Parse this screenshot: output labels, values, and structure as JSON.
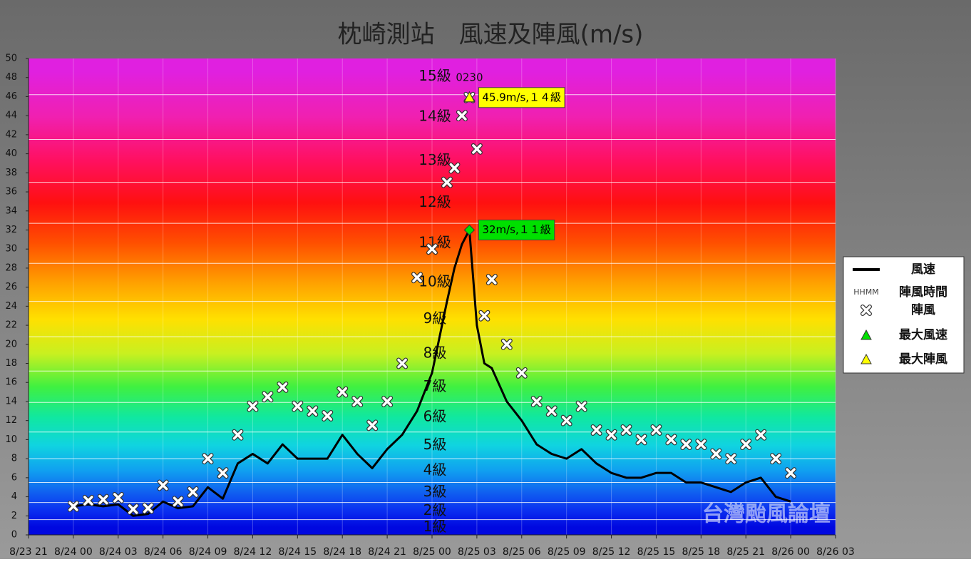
{
  "chart_data": {
    "type": "line",
    "title": "枕崎測站　風速及陣風(m/s)",
    "watermark": "台灣颱風論壇",
    "xlim": [
      "8/23 21",
      "8/26 03"
    ],
    "xticks": [
      "8/23 21",
      "8/24 00",
      "8/24 03",
      "8/24 06",
      "8/24 09",
      "8/24 12",
      "8/24 15",
      "8/24 18",
      "8/24 21",
      "8/25 00",
      "8/25 03",
      "8/25 06",
      "8/25 09",
      "8/25 12",
      "8/25 15",
      "8/25 18",
      "8/25 21",
      "8/26 00",
      "8/26 03"
    ],
    "ylim": [
      0,
      50
    ],
    "yticks": [
      0,
      2,
      4,
      6,
      8,
      10,
      12,
      14,
      16,
      18,
      20,
      22,
      24,
      26,
      28,
      30,
      32,
      34,
      36,
      38,
      40,
      42,
      44,
      46,
      48,
      50
    ],
    "grid": true,
    "x": [
      "8/24 00:00",
      "8/24 01:00",
      "8/24 02:00",
      "8/24 03:00",
      "8/24 04:00",
      "8/24 05:00",
      "8/24 06:00",
      "8/24 07:00",
      "8/24 08:00",
      "8/24 09:00",
      "8/24 10:00",
      "8/24 11:00",
      "8/24 12:00",
      "8/24 13:00",
      "8/24 14:00",
      "8/24 15:00",
      "8/24 16:00",
      "8/24 17:00",
      "8/24 18:00",
      "8/24 19:00",
      "8/24 20:00",
      "8/24 21:00",
      "8/24 22:00",
      "8/24 23:00",
      "8/25 00:00",
      "8/25 01:00",
      "8/25 01:30",
      "8/25 02:00",
      "8/25 02:30",
      "8/25 03:00",
      "8/25 03:30",
      "8/25 04:00",
      "8/25 05:00",
      "8/25 06:00",
      "8/25 07:00",
      "8/25 08:00",
      "8/25 09:00",
      "8/25 10:00",
      "8/25 11:00",
      "8/25 12:00",
      "8/25 13:00",
      "8/25 14:00",
      "8/25 15:00",
      "8/25 16:00",
      "8/25 17:00",
      "8/25 18:00",
      "8/25 19:00",
      "8/25 20:00",
      "8/25 21:00",
      "8/25 22:00",
      "8/25 23:00",
      "8/26 00:00"
    ],
    "series": [
      {
        "name": "風速",
        "color": "#000000",
        "marker": "line",
        "values": [
          3.0,
          3.2,
          3.0,
          3.2,
          2.0,
          2.2,
          3.5,
          2.8,
          3.0,
          5.0,
          3.8,
          7.5,
          8.5,
          7.5,
          9.5,
          8.0,
          8.0,
          8.0,
          10.5,
          8.5,
          7.0,
          9.0,
          10.5,
          13.0,
          17.0,
          24.5,
          28.0,
          30.5,
          32.0,
          22.0,
          18.0,
          17.5,
          14.0,
          12.0,
          9.5,
          8.5,
          8.0,
          9.0,
          7.5,
          6.5,
          6.0,
          6.0,
          6.5,
          6.5,
          5.5,
          5.5,
          5.0,
          4.5,
          5.5,
          6.0,
          4.0,
          3.5
        ]
      },
      {
        "name": "陣風",
        "color": "#ffffff",
        "marker": "x",
        "values": [
          3.0,
          3.6,
          3.7,
          3.9,
          2.7,
          2.8,
          5.2,
          3.5,
          4.5,
          8.0,
          6.5,
          10.5,
          13.5,
          14.5,
          15.5,
          13.5,
          13.0,
          12.5,
          15.0,
          14.0,
          11.5,
          14.0,
          18.0,
          27.0,
          30.0,
          37.0,
          38.5,
          44.0,
          45.9,
          40.5,
          23.0,
          26.8,
          20.0,
          17.0,
          14.0,
          13.0,
          12.0,
          13.5,
          11.0,
          10.5,
          11.0,
          10.0,
          11.0,
          10.0,
          9.5,
          9.5,
          8.5,
          8.0,
          9.5,
          10.5,
          8.0,
          6.5
        ]
      }
    ],
    "max_wind": {
      "name": "最大風速",
      "x": "8/25 02:30",
      "value": 32,
      "label": "32m/s,１１級",
      "color": "#00e000"
    },
    "max_gust": {
      "name": "最大陣風",
      "x": "8/25 02:30",
      "value": 45.9,
      "label": "45.9m/s,１４級",
      "time_label": "0230",
      "color": "#ffff00"
    },
    "legend": {
      "position": "right",
      "time_symbol": "HHMM",
      "time_name": "陣風時間"
    },
    "beaufort": [
      {
        "label": "1級",
        "from": 0,
        "to": 1.6,
        "color": "#0008e0"
      },
      {
        "label": "2級",
        "from": 1.6,
        "to": 3.4,
        "color": "#0a2ef0"
      },
      {
        "label": "3級",
        "from": 3.4,
        "to": 5.5,
        "color": "#1060f0"
      },
      {
        "label": "4級",
        "from": 5.5,
        "to": 8.0,
        "color": "#10a0f0"
      },
      {
        "label": "5級",
        "from": 8.0,
        "to": 10.8,
        "color": "#10d4e0"
      },
      {
        "label": "6級",
        "from": 10.8,
        "to": 13.9,
        "color": "#10e8a0"
      },
      {
        "label": "7級",
        "from": 13.9,
        "to": 17.2,
        "color": "#40f040"
      },
      {
        "label": "8級",
        "from": 17.2,
        "to": 20.8,
        "color": "#c8f020"
      },
      {
        "label": "9級",
        "from": 20.8,
        "to": 24.5,
        "color": "#ffe000"
      },
      {
        "label": "10級",
        "from": 24.5,
        "to": 28.5,
        "color": "#ffa000"
      },
      {
        "label": "11級",
        "from": 28.5,
        "to": 32.7,
        "color": "#ff5000"
      },
      {
        "label": "12級",
        "from": 32.7,
        "to": 37.0,
        "color": "#ff1010"
      },
      {
        "label": "13級",
        "from": 37.0,
        "to": 41.5,
        "color": "#ff1060"
      },
      {
        "label": "14級",
        "from": 41.5,
        "to": 46.2,
        "color": "#f020b0"
      },
      {
        "label": "15級",
        "from": 46.2,
        "to": 51.0,
        "color": "#e020e0"
      }
    ]
  }
}
